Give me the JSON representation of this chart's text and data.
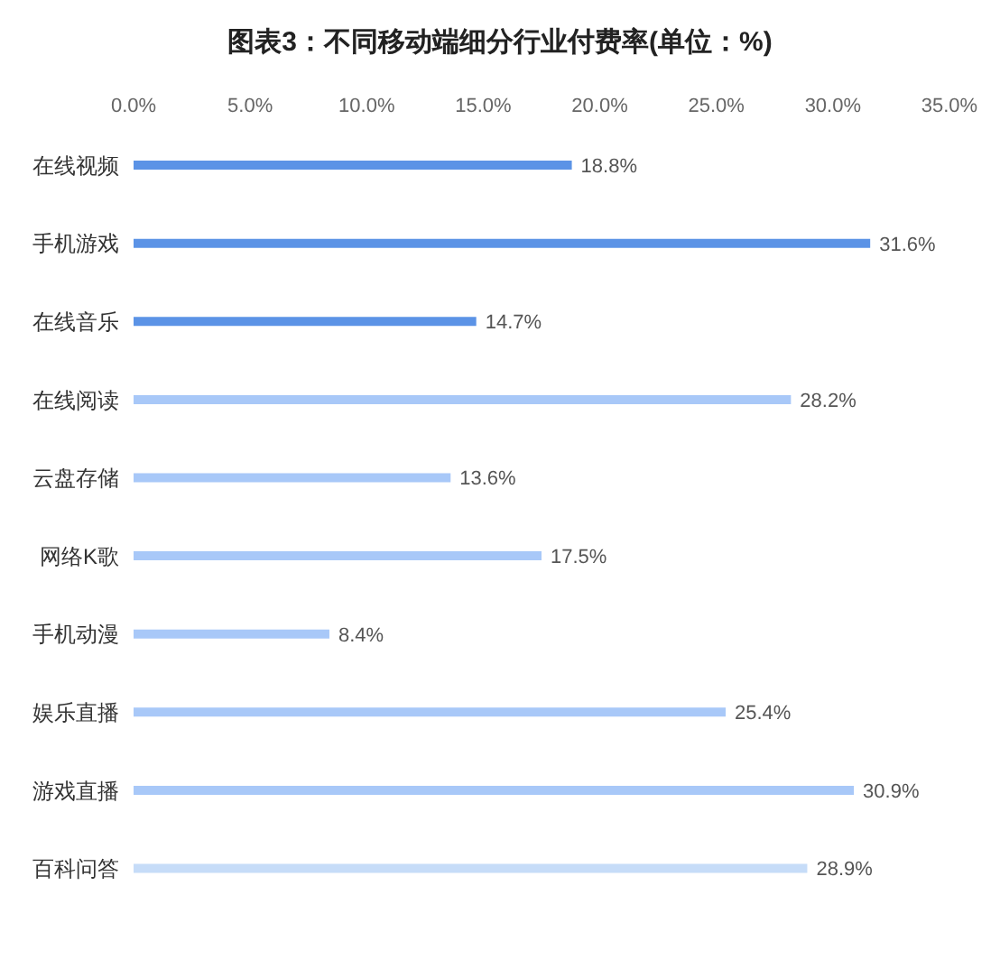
{
  "chart_data": {
    "type": "bar",
    "title": "图表3：不同移动端细分行业付费率(单位：%)",
    "orientation": "horizontal",
    "categories": [
      "在线视频",
      "手机游戏",
      "在线音乐",
      "在线阅读",
      "云盘存储",
      "网络K歌",
      "手机动漫",
      "娱乐直播",
      "游戏直播",
      "百科问答"
    ],
    "values": [
      18.8,
      31.6,
      14.7,
      28.2,
      13.6,
      17.5,
      8.4,
      25.4,
      30.9,
      28.9
    ],
    "colors": [
      "#5b93e6",
      "#5b93e6",
      "#5b93e6",
      "#a8c8f8",
      "#a8c8f8",
      "#a8c8f8",
      "#a8c8f8",
      "#a8c8f8",
      "#a8c8f8",
      "#c6dcf8"
    ],
    "value_labels": [
      "18.8%",
      "31.6%",
      "14.7%",
      "28.2%",
      "13.6%",
      "17.5%",
      "8.4%",
      "25.4%",
      "30.9%",
      "28.9%"
    ],
    "xlim": [
      0,
      35
    ],
    "xticks": [
      {
        "value": 0,
        "label": "0.0%"
      },
      {
        "value": 5,
        "label": "5.0%"
      },
      {
        "value": 10,
        "label": "10.0%"
      },
      {
        "value": 15,
        "label": "15.0%"
      },
      {
        "value": 20,
        "label": "20.0%"
      },
      {
        "value": 25,
        "label": "25.0%"
      },
      {
        "value": 30,
        "label": "30.0%"
      },
      {
        "value": 35,
        "label": "35.0%"
      }
    ]
  }
}
